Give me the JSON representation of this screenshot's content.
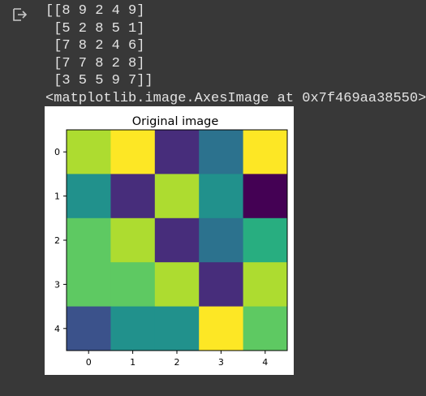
{
  "output": {
    "icon": "output-redirect-icon",
    "lines": [
      "[[8 9 2 4 9]",
      " [5 2 8 5 1]",
      " [7 8 2 4 6]",
      " [7 7 8 2 8]",
      " [3 5 5 9 7]]",
      "<matplotlib.image.AxesImage at 0x7f469aa38550>"
    ]
  },
  "chart_data": {
    "type": "heatmap",
    "title": "Original image",
    "colormap": "viridis",
    "vmin": 1,
    "vmax": 9,
    "matrix": [
      [
        8,
        9,
        2,
        4,
        9
      ],
      [
        5,
        2,
        8,
        5,
        1
      ],
      [
        7,
        8,
        2,
        4,
        6
      ],
      [
        7,
        7,
        8,
        2,
        8
      ],
      [
        3,
        5,
        5,
        9,
        7
      ]
    ],
    "x_ticks": [
      "0",
      "1",
      "2",
      "3",
      "4"
    ],
    "y_ticks": [
      "0",
      "1",
      "2",
      "3",
      "4"
    ],
    "xlabel": "",
    "ylabel": "",
    "grid": false
  }
}
